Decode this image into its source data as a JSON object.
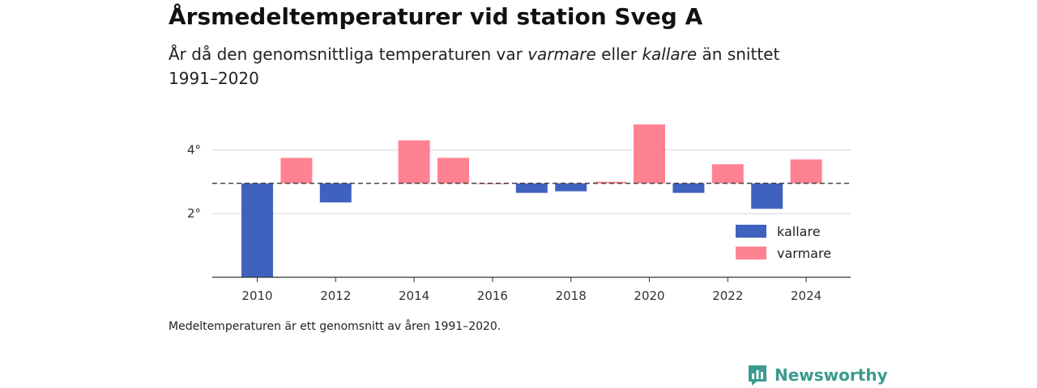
{
  "header": {
    "title": "Årsmedeltemperaturer vid station Sveg A",
    "subtitle_pre": "År då den genomsnittliga temperaturen var ",
    "subtitle_warm": "varmare",
    "subtitle_mid": " eller ",
    "subtitle_cold": "kallare",
    "subtitle_post": " än snittet 1991–2020"
  },
  "footer": {
    "note": "Medeltemperaturen är ett genomsnitt av åren 1991–2020.",
    "brand": "Newsworthy"
  },
  "colors": {
    "cold": "#4062bf",
    "warm": "#ff8293",
    "brand": "#3a9b8e"
  },
  "chart_data": {
    "type": "bar",
    "title": "Årsmedeltemperaturer vid station Sveg A",
    "x": [
      2010,
      2011,
      2012,
      2013,
      2014,
      2015,
      2016,
      2017,
      2018,
      2019,
      2020,
      2021,
      2022,
      2023,
      2024
    ],
    "values": [
      0.0,
      3.75,
      2.35,
      null,
      4.3,
      3.75,
      2.95,
      2.65,
      2.7,
      3.0,
      4.8,
      2.65,
      3.55,
      2.15,
      3.7
    ],
    "baseline": 2.95,
    "ylim": [
      0,
      4.9
    ],
    "yticks": [
      2,
      4
    ],
    "ytick_labels": [
      "2°",
      "4°"
    ],
    "xticks": [
      2010,
      2012,
      2014,
      2016,
      2018,
      2020,
      2022,
      2024
    ],
    "xtick_labels": [
      "2010",
      "2012",
      "2014",
      "2016",
      "2018",
      "2020",
      "2022",
      "2024"
    ],
    "legend": [
      {
        "name": "kallare",
        "color": "#4062bf"
      },
      {
        "name": "varmare",
        "color": "#ff8293"
      }
    ],
    "legend_position": "bottom-right",
    "grid": true
  }
}
